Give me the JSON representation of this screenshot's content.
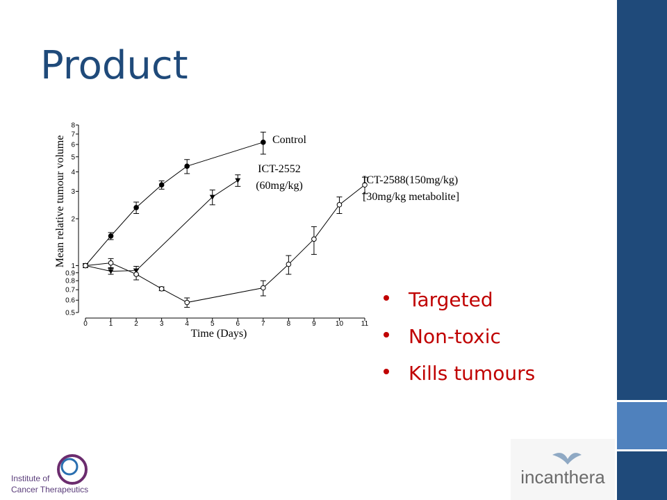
{
  "slide": {
    "title": "Product",
    "bullets": [
      "Targeted",
      "Non-toxic",
      "Kills tumours"
    ],
    "logo_left": [
      "Institute of",
      "Cancer Therapeutics"
    ],
    "logo_right": "incanthera"
  },
  "chart_data": {
    "type": "line",
    "xlabel": "Time (Days)",
    "ylabel": "Mean relative tumour volume",
    "xlim": [
      0,
      11
    ],
    "xticks": [
      0,
      1,
      2,
      3,
      4,
      5,
      6,
      7,
      8,
      9,
      10,
      11
    ],
    "ylim": [
      0.5,
      8
    ],
    "yticks": [
      0.5,
      0.6,
      0.7,
      0.8,
      0.9,
      1,
      2,
      3,
      4,
      5,
      6,
      7,
      8
    ],
    "log_y": true,
    "grid": false,
    "series": [
      {
        "label": [
          "Control"
        ],
        "color": "#000000",
        "marker": "filled-circle",
        "x": [
          0,
          1,
          2,
          3,
          4,
          7
        ],
        "values": [
          1,
          1.55,
          2.36,
          3.3,
          4.35,
          6.2
        ],
        "errors": [
          0.03,
          0.08,
          0.2,
          0.2,
          0.45,
          1.0
        ]
      },
      {
        "label": [
          "ICT-2552",
          "(60mg/kg)"
        ],
        "color": "#000000",
        "marker": "triangle-down",
        "x": [
          0,
          1,
          2,
          5,
          6
        ],
        "values": [
          1,
          0.92,
          0.93,
          2.76,
          3.53
        ],
        "errors": [
          0.03,
          0.04,
          0.06,
          0.3,
          0.3
        ]
      },
      {
        "label": [
          "ICT-2588(150mg/kg)",
          "[30mg/kg metabolite]"
        ],
        "color": "#000000",
        "marker": "open-circle",
        "x": [
          0,
          1,
          2,
          3,
          4,
          7,
          8,
          9,
          10,
          11
        ],
        "values": [
          1,
          1.04,
          0.88,
          0.71,
          0.58,
          0.72,
          1.02,
          1.48,
          2.46,
          3.3
        ],
        "errors": [
          0.03,
          0.07,
          0.07,
          0.02,
          0.04,
          0.08,
          0.14,
          0.3,
          0.3,
          0.4
        ]
      }
    ]
  }
}
